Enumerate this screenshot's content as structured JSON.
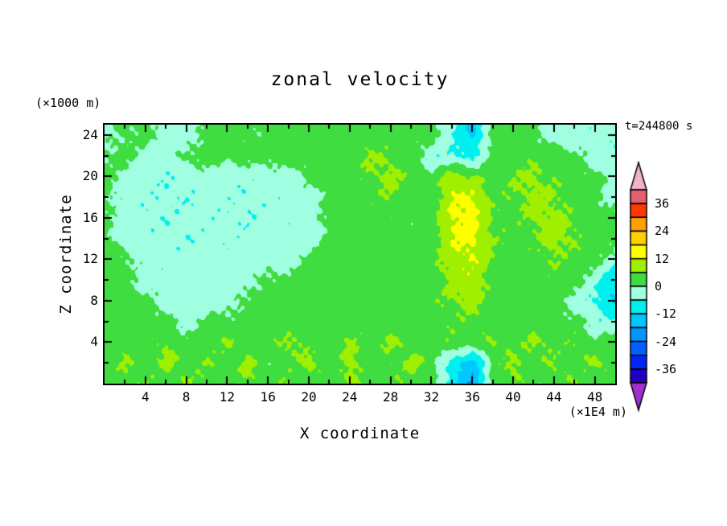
{
  "chart_data": {
    "type": "heatmap",
    "title": "zonal velocity",
    "timestamp": "t=244800 s",
    "xlabel": "X coordinate",
    "x_unit": "(×1E4 m)",
    "zlabel": "Z coordinate",
    "z_unit": "(×1000 m)",
    "x_range": [
      0,
      50
    ],
    "z_range": [
      0,
      25
    ],
    "x_ticks": [
      4,
      8,
      12,
      16,
      20,
      24,
      28,
      32,
      36,
      40,
      44,
      48
    ],
    "z_ticks": [
      4,
      8,
      12,
      16,
      20,
      24
    ],
    "major_tick_step": 4,
    "minor_tick_step": 2,
    "levels_step": 6,
    "band_edges": [
      -42,
      -36,
      -30,
      -24,
      -18,
      -12,
      -6,
      0,
      6,
      12,
      18,
      24,
      30,
      36,
      42
    ],
    "band_colors": [
      "#2000c0",
      "#0028f0",
      "#0060ff",
      "#0098ff",
      "#00c8ff",
      "#00f0f0",
      "#a0ffe0",
      "#3fdd3f",
      "#a0ee00",
      "#ffff00",
      "#ffd000",
      "#ffa000",
      "#ff3800",
      "#e45f72"
    ],
    "under_color": "#a030d0",
    "over_color": "#f0b4c8",
    "colorbar_labels": [
      36,
      24,
      12,
      0,
      -12,
      -24,
      -36
    ],
    "axis_color": "#000000",
    "background_color": "#ffffff",
    "grid": {
      "dx": 2,
      "dz": 2,
      "z_top_row": 24,
      "values": [
        [
          -2,
          1,
          2,
          -3,
          -4,
          2,
          3,
          2,
          1,
          3,
          3,
          2,
          3,
          4,
          2,
          3,
          2,
          -5,
          -14,
          2,
          3,
          2,
          -4,
          -3,
          -4,
          -5
        ],
        [
          1,
          2,
          -3,
          -4,
          2,
          3,
          2,
          2,
          3,
          3,
          4,
          3,
          4,
          7,
          5,
          3,
          -4,
          -6,
          -8,
          3,
          4,
          5,
          3,
          2,
          -3,
          -4
        ],
        [
          2,
          -2,
          -4,
          -5,
          -4,
          -3,
          -4,
          -4,
          -3,
          -4,
          2,
          3,
          3,
          5,
          8,
          4,
          2,
          10,
          6,
          3,
          6,
          7,
          5,
          3,
          2,
          -3
        ],
        [
          2,
          -3,
          -4,
          -5,
          -5,
          -4,
          -4,
          -5,
          -4,
          -4,
          -3,
          2,
          3,
          4,
          6,
          3,
          2,
          12,
          13,
          4,
          5,
          8,
          6,
          4,
          2,
          -3
        ],
        [
          1,
          -3,
          -5,
          -5,
          -4,
          -4,
          -5,
          -5,
          -4,
          -4,
          -3,
          2,
          2,
          3,
          4,
          2,
          3,
          13,
          14,
          5,
          4,
          7,
          8,
          5,
          3,
          2
        ],
        [
          2,
          -3,
          -4,
          -4,
          -5,
          -4,
          -4,
          -4,
          -4,
          -3,
          -3,
          2,
          3,
          2,
          3,
          3,
          2,
          12,
          14,
          6,
          3,
          5,
          8,
          6,
          3,
          2
        ],
        [
          2,
          2,
          -3,
          -4,
          -4,
          -3,
          -4,
          -3,
          -3,
          -3,
          2,
          3,
          2,
          3,
          2,
          3,
          4,
          10,
          12,
          5,
          2,
          4,
          6,
          4,
          2,
          -3
        ],
        [
          3,
          2,
          -3,
          -4,
          -3,
          -4,
          -3,
          -3,
          2,
          2,
          3,
          2,
          3,
          2,
          3,
          2,
          3,
          8,
          10,
          4,
          3,
          3,
          4,
          2,
          -4,
          -12
        ],
        [
          2,
          3,
          2,
          -3,
          -4,
          -3,
          -3,
          2,
          3,
          3,
          2,
          3,
          2,
          3,
          2,
          3,
          4,
          6,
          8,
          3,
          2,
          4,
          3,
          -3,
          -6,
          -14
        ],
        [
          3,
          2,
          3,
          2,
          -3,
          2,
          2,
          3,
          2,
          2,
          3,
          2,
          3,
          2,
          3,
          2,
          3,
          4,
          5,
          2,
          3,
          2,
          3,
          2,
          -4,
          -5
        ],
        [
          2,
          4,
          3,
          6,
          2,
          3,
          7,
          2,
          3,
          8,
          3,
          2,
          7,
          3,
          8,
          2,
          3,
          6,
          2,
          7,
          3,
          8,
          3,
          6,
          2,
          3
        ],
        [
          3,
          7,
          2,
          8,
          3,
          6,
          2,
          8,
          2,
          3,
          9,
          2,
          8,
          3,
          2,
          9,
          3,
          -10,
          -16,
          2,
          8,
          3,
          7,
          2,
          8,
          3
        ],
        [
          2,
          3,
          6,
          2,
          7,
          3,
          2,
          6,
          3,
          7,
          2,
          3,
          7,
          2,
          6,
          3,
          2,
          -8,
          -20,
          3,
          6,
          2,
          3,
          7,
          2,
          3
        ]
      ]
    }
  }
}
